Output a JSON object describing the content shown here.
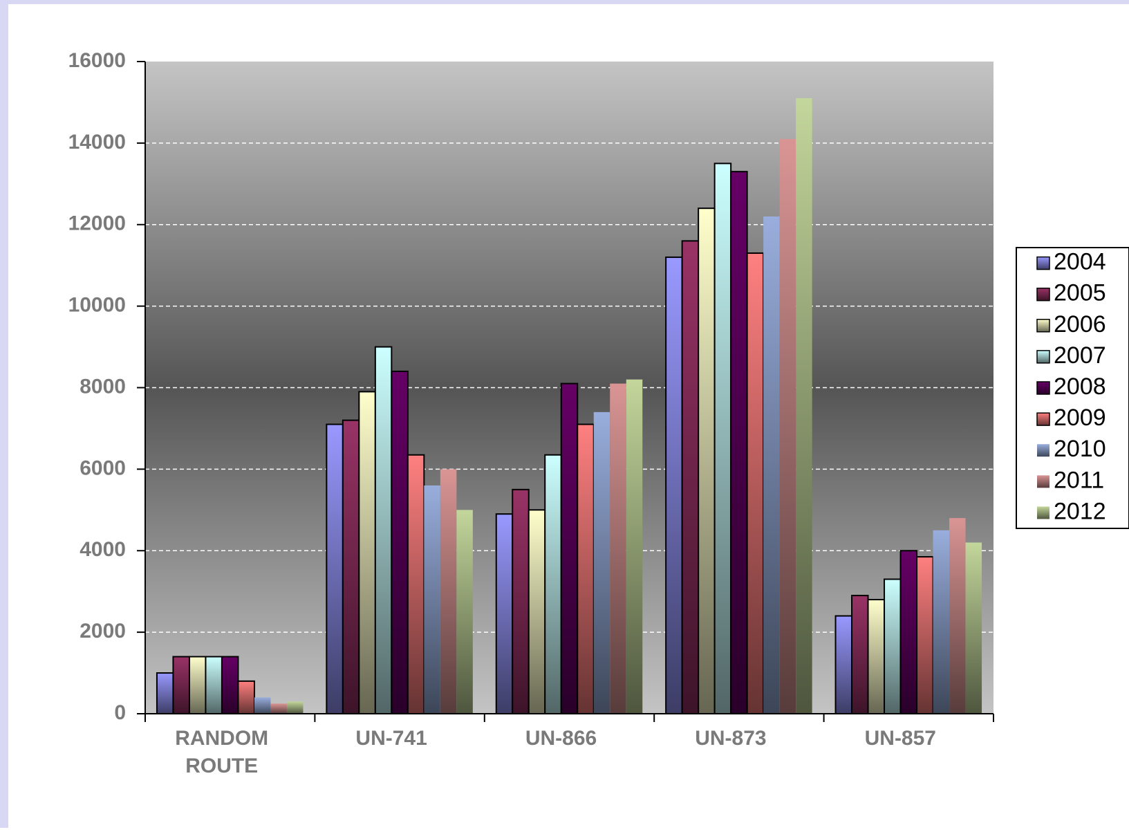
{
  "chart_data": {
    "type": "bar",
    "categories": [
      "RANDOM ROUTE",
      "UN-741",
      "UN-866",
      "UN-873",
      "UN-857"
    ],
    "series": [
      {
        "name": "2004",
        "color": "#9999ff",
        "values": [
          1000,
          7100,
          4900,
          11200,
          2400
        ]
      },
      {
        "name": "2005",
        "color": "#993366",
        "values": [
          1400,
          7200,
          5500,
          11600,
          2900
        ]
      },
      {
        "name": "2006",
        "color": "#ffffcc",
        "values": [
          1400,
          7900,
          5000,
          12400,
          2800
        ]
      },
      {
        "name": "2007",
        "color": "#ccffff",
        "values": [
          1400,
          9000,
          6350,
          13500,
          3300
        ]
      },
      {
        "name": "2008",
        "color": "#660066",
        "values": [
          1400,
          8400,
          8100,
          13300,
          4000
        ]
      },
      {
        "name": "2009",
        "color": "#ff8080",
        "values": [
          800,
          6350,
          7100,
          11300,
          3850
        ]
      },
      {
        "name": "2010",
        "color": "#99aedd",
        "values": [
          400,
          5600,
          7400,
          12200,
          4500
        ]
      },
      {
        "name": "2011",
        "color": "#d99594",
        "values": [
          250,
          6000,
          8100,
          14100,
          4800
        ]
      },
      {
        "name": "2012",
        "color": "#c3d69b",
        "values": [
          300,
          5000,
          8200,
          15100,
          4200
        ]
      }
    ],
    "ylim": [
      0,
      16000
    ],
    "yticks": [
      0,
      2000,
      4000,
      6000,
      8000,
      10000,
      12000,
      14000,
      16000
    ],
    "grid": true,
    "legend": "right"
  }
}
